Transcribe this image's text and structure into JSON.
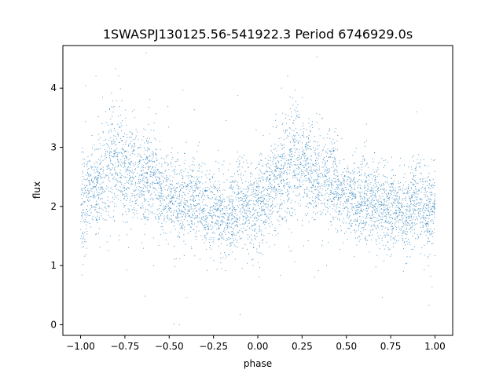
{
  "chart_data": {
    "type": "scatter",
    "title": "1SWASPJ130125.56-541922.3 Period 6746929.0s",
    "xlabel": "phase",
    "ylabel": "flux",
    "xlim": [
      -1.1,
      1.1
    ],
    "ylim": [
      -0.18,
      4.72
    ],
    "xticks": [
      -1.0,
      -0.75,
      -0.5,
      -0.25,
      0.0,
      0.25,
      0.5,
      0.75,
      1.0
    ],
    "xtick_labels": [
      "−1.00",
      "−0.75",
      "−0.50",
      "−0.25",
      "0.00",
      "0.25",
      "0.50",
      "0.75",
      "1.00"
    ],
    "yticks": [
      0,
      1,
      2,
      3,
      4
    ],
    "ytick_labels": [
      "0",
      "1",
      "2",
      "3",
      "4"
    ],
    "grid": false,
    "point_color": "#1f77b4",
    "phase_range": [
      -1.0,
      1.0
    ],
    "folded_profile": {
      "phase": [
        0.0,
        0.02,
        0.05,
        0.08,
        0.1,
        0.13,
        0.16,
        0.19,
        0.22,
        0.25,
        0.28,
        0.3,
        0.33,
        0.36,
        0.4,
        0.43,
        0.46,
        0.5,
        0.53,
        0.56,
        0.6,
        0.63,
        0.66,
        0.7,
        0.73,
        0.76,
        0.8,
        0.83,
        0.86,
        0.9,
        0.93,
        0.96,
        1.0
      ],
      "flux_median": [
        1.95,
        2.05,
        2.2,
        2.3,
        2.4,
        2.5,
        2.6,
        2.75,
        2.8,
        2.7,
        2.55,
        2.6,
        2.5,
        2.45,
        2.55,
        2.45,
        2.2,
        2.25,
        2.15,
        2.05,
        2.2,
        2.1,
        2.1,
        1.95,
        1.9,
        1.95,
        1.9,
        1.8,
        2.0,
        2.15,
        1.95,
        1.9,
        1.95
      ],
      "flux_spread": [
        0.4,
        0.4,
        0.35,
        0.35,
        0.4,
        0.45,
        0.5,
        0.5,
        0.5,
        0.45,
        0.45,
        0.45,
        0.4,
        0.4,
        0.4,
        0.4,
        0.35,
        0.35,
        0.35,
        0.35,
        0.35,
        0.35,
        0.35,
        0.35,
        0.35,
        0.35,
        0.35,
        0.35,
        0.35,
        0.35,
        0.35,
        0.35,
        0.4
      ]
    }
  }
}
